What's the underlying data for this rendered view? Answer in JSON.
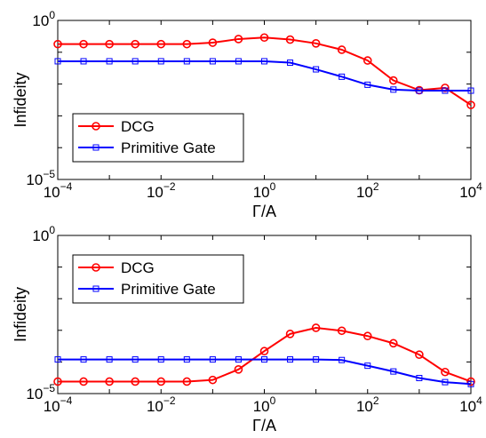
{
  "chart_data": [
    {
      "type": "line",
      "xscale": "log",
      "yscale": "log",
      "xlim": [
        0.0001,
        10000
      ],
      "ylim": [
        1e-05,
        1
      ],
      "xlabel": "Γ/A",
      "ylabel": "Infideity",
      "x_ticks": [
        {
          "value": 0.0001,
          "base": "10",
          "exp": "−4"
        },
        {
          "value": 0.01,
          "base": "10",
          "exp": "−2"
        },
        {
          "value": 1,
          "base": "10",
          "exp": "0"
        },
        {
          "value": 100,
          "base": "10",
          "exp": "2"
        },
        {
          "value": 10000,
          "base": "10",
          "exp": "4"
        }
      ],
      "y_ticks": [
        {
          "value": 1,
          "base": "10",
          "exp": "0"
        },
        {
          "value": 1e-05,
          "base": "10",
          "exp": "−5"
        }
      ],
      "legend": "left",
      "series": [
        {
          "name": "DCG",
          "color": "#ff0000",
          "marker": "circle",
          "x": [
            0.0001,
            0.000316,
            0.001,
            0.00316,
            0.01,
            0.0316,
            0.1,
            0.316,
            1,
            3.16,
            10,
            31.6,
            100,
            316,
            1000,
            3162,
            10000
          ],
          "values": [
            0.18,
            0.18,
            0.18,
            0.18,
            0.18,
            0.18,
            0.2,
            0.26,
            0.29,
            0.25,
            0.19,
            0.12,
            0.055,
            0.013,
            0.0064,
            0.0076,
            0.0022
          ]
        },
        {
          "name": "Primitive Gate",
          "color": "#0000ff",
          "marker": "square",
          "x": [
            0.0001,
            0.000316,
            0.001,
            0.00316,
            0.01,
            0.0316,
            0.1,
            0.316,
            1,
            3.16,
            10,
            31.6,
            100,
            316,
            1000,
            3162,
            10000
          ],
          "values": [
            0.052,
            0.052,
            0.052,
            0.052,
            0.052,
            0.052,
            0.052,
            0.052,
            0.052,
            0.047,
            0.029,
            0.017,
            0.0095,
            0.0067,
            0.0062,
            0.0062,
            0.0062
          ]
        }
      ]
    },
    {
      "type": "line",
      "xscale": "log",
      "yscale": "log",
      "xlim": [
        0.0001,
        10000
      ],
      "ylim": [
        1e-05,
        1
      ],
      "xlabel": "Γ/A",
      "ylabel": "Infideity",
      "x_ticks": [
        {
          "value": 0.0001,
          "base": "10",
          "exp": "−4"
        },
        {
          "value": 0.01,
          "base": "10",
          "exp": "−2"
        },
        {
          "value": 1,
          "base": "10",
          "exp": "0"
        },
        {
          "value": 100,
          "base": "10",
          "exp": "2"
        },
        {
          "value": 10000,
          "base": "10",
          "exp": "4"
        }
      ],
      "y_ticks": [
        {
          "value": 1,
          "base": "10",
          "exp": "0"
        },
        {
          "value": 1e-05,
          "base": "10",
          "exp": "−5"
        }
      ],
      "legend": "top-left",
      "series": [
        {
          "name": "DCG",
          "color": "#ff0000",
          "marker": "circle",
          "x": [
            0.0001,
            0.000316,
            0.001,
            0.00316,
            0.01,
            0.0316,
            0.1,
            0.316,
            1,
            3.16,
            10,
            31.6,
            100,
            316,
            1000,
            3162,
            10000
          ],
          "values": [
            2.4e-05,
            2.4e-05,
            2.4e-05,
            2.4e-05,
            2.4e-05,
            2.4e-05,
            2.7e-05,
            5.8e-05,
            0.00022,
            0.00077,
            0.0012,
            0.00097,
            0.00066,
            0.00039,
            0.00017,
            4.8e-05,
            2.4e-05
          ]
        },
        {
          "name": "Primitive Gate",
          "color": "#0000ff",
          "marker": "square",
          "x": [
            0.0001,
            0.000316,
            0.001,
            0.00316,
            0.01,
            0.0316,
            0.1,
            0.316,
            1,
            3.16,
            10,
            31.6,
            100,
            316,
            1000,
            3162,
            10000
          ],
          "values": [
            0.00012,
            0.00012,
            0.00012,
            0.00012,
            0.00012,
            0.00012,
            0.00012,
            0.00012,
            0.00012,
            0.00012,
            0.00012,
            0.000115,
            7.6e-05,
            5e-05,
            3.1e-05,
            2.3e-05,
            2e-05
          ]
        }
      ]
    }
  ]
}
